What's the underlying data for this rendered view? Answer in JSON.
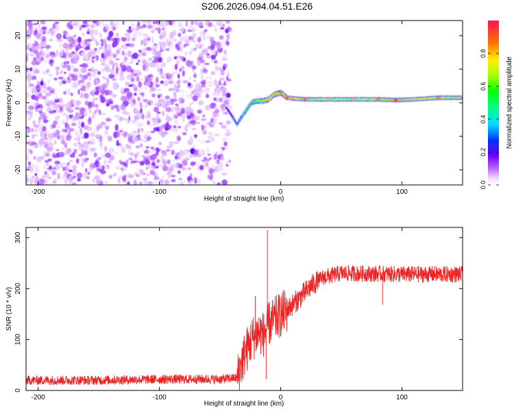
{
  "figure": {
    "title": "S206.2026.094.04.51.E26"
  },
  "chart_data": [
    {
      "type": "heatmap",
      "title": "S206.2026.094.04.51.E26",
      "xlabel": "Height of straight line (km)",
      "ylabel": "Frequency (Hz)",
      "xlim": [
        -210,
        150
      ],
      "ylim": [
        -24.5,
        24.5
      ],
      "xticks": [
        -200,
        -100,
        0,
        100
      ],
      "yticks": [
        -20,
        -10,
        0,
        10,
        20
      ],
      "colorbar": {
        "label": "Normalized spectral amplitude",
        "range": [
          0,
          1
        ],
        "ticks": [
          0.0,
          0.2,
          0.4,
          0.6,
          0.8
        ],
        "tick_labels": [
          "0.0",
          "0.2",
          "0.4",
          "0.6",
          "0.8"
        ],
        "colormap": "rainbow-white-to-red"
      },
      "noise_region": {
        "x_range": [
          -210,
          -42
        ],
        "freq_range": [
          -24.5,
          24.5
        ],
        "amplitude_range": [
          0.0,
          0.15
        ]
      },
      "signal_track": [
        {
          "x": -45,
          "freq": -1.5,
          "amplitude": 0.2
        },
        {
          "x": -40,
          "freq": -4.0,
          "amplitude": 0.3
        },
        {
          "x": -36,
          "freq": -6.5,
          "amplitude": 0.35
        },
        {
          "x": -32,
          "freq": -4.0,
          "amplitude": 0.4
        },
        {
          "x": -28,
          "freq": -2.0,
          "amplitude": 0.5
        },
        {
          "x": -24,
          "freq": 0.0,
          "amplitude": 0.55
        },
        {
          "x": -20,
          "freq": 0.5,
          "amplitude": 0.6
        },
        {
          "x": -15,
          "freq": 0.5,
          "amplitude": 0.65
        },
        {
          "x": -10,
          "freq": 1.0,
          "amplitude": 0.7
        },
        {
          "x": -5,
          "freq": 2.5,
          "amplitude": 0.7
        },
        {
          "x": 0,
          "freq": 3.0,
          "amplitude": 0.75
        },
        {
          "x": 5,
          "freq": 1.5,
          "amplitude": 0.8
        },
        {
          "x": 10,
          "freq": 1.3,
          "amplitude": 0.7
        },
        {
          "x": 20,
          "freq": 1.0,
          "amplitude": 0.8
        },
        {
          "x": 40,
          "freq": 1.0,
          "amplitude": 0.7
        },
        {
          "x": 60,
          "freq": 1.0,
          "amplitude": 0.7
        },
        {
          "x": 80,
          "freq": 1.0,
          "amplitude": 0.75
        },
        {
          "x": 95,
          "freq": 0.8,
          "amplitude": 0.85
        },
        {
          "x": 110,
          "freq": 1.0,
          "amplitude": 0.7
        },
        {
          "x": 130,
          "freq": 1.5,
          "amplitude": 0.75
        },
        {
          "x": 150,
          "freq": 1.5,
          "amplitude": 0.75
        }
      ]
    },
    {
      "type": "line",
      "xlabel": "Height of straight line (km)",
      "ylabel": "SNR (10 * v/v)",
      "xlim": [
        -210,
        150
      ],
      "ylim": [
        0,
        320
      ],
      "xticks": [
        -200,
        -100,
        0,
        100
      ],
      "yticks": [
        0,
        100,
        200,
        300
      ],
      "series": [
        {
          "name": "SNR",
          "color": "#ee2222",
          "trend": [
            {
              "x": -210,
              "y": 20
            },
            {
              "x": -150,
              "y": 20
            },
            {
              "x": -100,
              "y": 22
            },
            {
              "x": -50,
              "y": 22
            },
            {
              "x": -36,
              "y": 25
            },
            {
              "x": -30,
              "y": 70
            },
            {
              "x": -24,
              "y": 100
            },
            {
              "x": -18,
              "y": 115
            },
            {
              "x": -14,
              "y": 110
            },
            {
              "x": -10,
              "y": 130
            },
            {
              "x": -2,
              "y": 145
            },
            {
              "x": 5,
              "y": 158
            },
            {
              "x": 15,
              "y": 180
            },
            {
              "x": 25,
              "y": 205
            },
            {
              "x": 35,
              "y": 222
            },
            {
              "x": 50,
              "y": 230
            },
            {
              "x": 100,
              "y": 228
            },
            {
              "x": 150,
              "y": 228
            }
          ],
          "spikes": [
            {
              "x": -11,
              "y": 315
            },
            {
              "x": -21,
              "y": 185
            },
            {
              "x": -12,
              "y": 22
            },
            {
              "x": 84,
              "y": 168
            }
          ]
        }
      ]
    }
  ]
}
